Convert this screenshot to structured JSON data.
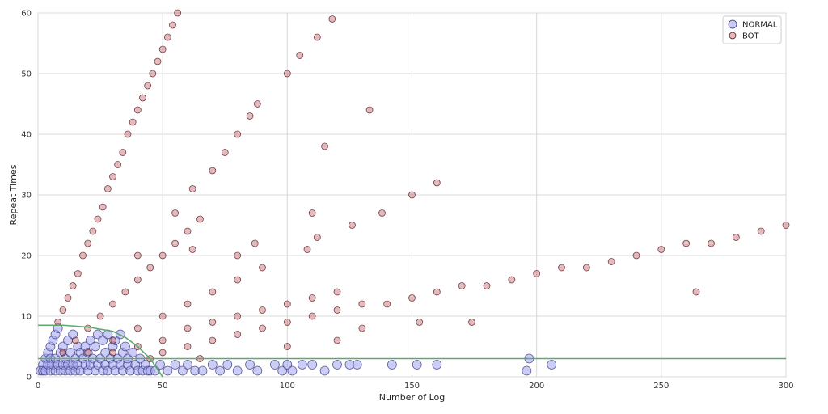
{
  "chart_data": {
    "type": "scatter",
    "xlabel": "Number of Log",
    "ylabel": "Repeat Times",
    "xlim": [
      0,
      300
    ],
    "ylim": [
      0,
      60
    ],
    "xticks": [
      0,
      50,
      100,
      150,
      200,
      250,
      300
    ],
    "yticks": [
      0,
      10,
      20,
      30,
      40,
      50,
      60
    ],
    "grid": true,
    "legend_position": "top-right",
    "series": [
      {
        "name": "NORMAL",
        "color": "#a0a4f0",
        "edge": "#3a3a80",
        "points": [
          [
            1,
            1
          ],
          [
            2,
            2
          ],
          [
            2,
            1
          ],
          [
            3,
            3
          ],
          [
            3,
            1
          ],
          [
            4,
            2
          ],
          [
            4,
            4
          ],
          [
            5,
            1
          ],
          [
            5,
            3
          ],
          [
            5,
            5
          ],
          [
            6,
            2
          ],
          [
            6,
            6
          ],
          [
            7,
            1
          ],
          [
            7,
            3
          ],
          [
            7,
            7
          ],
          [
            8,
            2
          ],
          [
            8,
            8
          ],
          [
            9,
            1
          ],
          [
            9,
            4
          ],
          [
            10,
            2
          ],
          [
            10,
            5
          ],
          [
            11,
            1
          ],
          [
            11,
            3
          ],
          [
            12,
            2
          ],
          [
            12,
            6
          ],
          [
            13,
            1
          ],
          [
            13,
            4
          ],
          [
            14,
            2
          ],
          [
            14,
            7
          ],
          [
            15,
            1
          ],
          [
            15,
            3
          ],
          [
            16,
            2
          ],
          [
            16,
            5
          ],
          [
            17,
            1
          ],
          [
            17,
            4
          ],
          [
            18,
            3
          ],
          [
            19,
            2
          ],
          [
            19,
            5
          ],
          [
            20,
            1
          ],
          [
            20,
            4
          ],
          [
            21,
            2
          ],
          [
            21,
            6
          ],
          [
            22,
            3
          ],
          [
            23,
            1
          ],
          [
            23,
            5
          ],
          [
            24,
            2
          ],
          [
            24,
            7
          ],
          [
            25,
            3
          ],
          [
            26,
            1
          ],
          [
            26,
            6
          ],
          [
            27,
            2
          ],
          [
            27,
            4
          ],
          [
            28,
            1
          ],
          [
            28,
            7
          ],
          [
            29,
            3
          ],
          [
            30,
            2
          ],
          [
            30,
            5
          ],
          [
            31,
            1
          ],
          [
            31,
            6
          ],
          [
            32,
            3
          ],
          [
            33,
            2
          ],
          [
            33,
            7
          ],
          [
            34,
            1
          ],
          [
            34,
            4
          ],
          [
            35,
            5
          ],
          [
            36,
            2
          ],
          [
            36,
            3
          ],
          [
            37,
            1
          ],
          [
            38,
            4
          ],
          [
            39,
            2
          ],
          [
            40,
            1
          ],
          [
            41,
            3
          ],
          [
            42,
            1
          ],
          [
            43,
            2
          ],
          [
            44,
            1
          ],
          [
            45,
            1
          ],
          [
            47,
            1
          ],
          [
            49,
            2
          ],
          [
            52,
            1
          ],
          [
            55,
            2
          ],
          [
            58,
            1
          ],
          [
            60,
            2
          ],
          [
            63,
            1
          ],
          [
            66,
            1
          ],
          [
            70,
            2
          ],
          [
            73,
            1
          ],
          [
            76,
            2
          ],
          [
            80,
            1
          ],
          [
            85,
            2
          ],
          [
            88,
            1
          ],
          [
            95,
            2
          ],
          [
            98,
            1
          ],
          [
            100,
            2
          ],
          [
            102,
            1
          ],
          [
            106,
            2
          ],
          [
            110,
            2
          ],
          [
            115,
            1
          ],
          [
            120,
            2
          ],
          [
            125,
            2
          ],
          [
            128,
            2
          ],
          [
            142,
            2
          ],
          [
            152,
            2
          ],
          [
            160,
            2
          ],
          [
            196,
            1
          ],
          [
            197,
            3
          ],
          [
            206,
            2
          ]
        ]
      },
      {
        "name": "BOT",
        "color": "#c0686e",
        "edge": "#5a1a1e",
        "points": [
          [
            8,
            9
          ],
          [
            10,
            11
          ],
          [
            12,
            13
          ],
          [
            14,
            15
          ],
          [
            16,
            17
          ],
          [
            18,
            20
          ],
          [
            20,
            22
          ],
          [
            22,
            24
          ],
          [
            24,
            26
          ],
          [
            26,
            28
          ],
          [
            28,
            31
          ],
          [
            30,
            33
          ],
          [
            32,
            35
          ],
          [
            34,
            37
          ],
          [
            36,
            40
          ],
          [
            38,
            42
          ],
          [
            40,
            44
          ],
          [
            42,
            46
          ],
          [
            44,
            48
          ],
          [
            46,
            50
          ],
          [
            48,
            52
          ],
          [
            50,
            54
          ],
          [
            52,
            56
          ],
          [
            54,
            58
          ],
          [
            56,
            60
          ],
          [
            10,
            4
          ],
          [
            15,
            6
          ],
          [
            20,
            8
          ],
          [
            25,
            10
          ],
          [
            30,
            12
          ],
          [
            35,
            14
          ],
          [
            40,
            16
          ],
          [
            45,
            18
          ],
          [
            50,
            20
          ],
          [
            55,
            22
          ],
          [
            60,
            24
          ],
          [
            65,
            26
          ],
          [
            20,
            4
          ],
          [
            30,
            6
          ],
          [
            40,
            8
          ],
          [
            50,
            10
          ],
          [
            60,
            12
          ],
          [
            70,
            14
          ],
          [
            80,
            16
          ],
          [
            90,
            18
          ],
          [
            30,
            4
          ],
          [
            40,
            5
          ],
          [
            50,
            6
          ],
          [
            60,
            8
          ],
          [
            70,
            9
          ],
          [
            80,
            10
          ],
          [
            90,
            11
          ],
          [
            100,
            12
          ],
          [
            110,
            13
          ],
          [
            120,
            14
          ],
          [
            50,
            4
          ],
          [
            60,
            5
          ],
          [
            70,
            6
          ],
          [
            80,
            7
          ],
          [
            90,
            8
          ],
          [
            100,
            9
          ],
          [
            110,
            10
          ],
          [
            120,
            11
          ],
          [
            130,
            12
          ],
          [
            140,
            12
          ],
          [
            150,
            13
          ],
          [
            160,
            14
          ],
          [
            170,
            15
          ],
          [
            180,
            15
          ],
          [
            190,
            16
          ],
          [
            200,
            17
          ],
          [
            210,
            18
          ],
          [
            220,
            18
          ],
          [
            230,
            19
          ],
          [
            240,
            20
          ],
          [
            250,
            21
          ],
          [
            260,
            22
          ],
          [
            270,
            22
          ],
          [
            280,
            23
          ],
          [
            290,
            24
          ],
          [
            300,
            25
          ],
          [
            40,
            20
          ],
          [
            55,
            27
          ],
          [
            62,
            31
          ],
          [
            75,
            37
          ],
          [
            85,
            43
          ],
          [
            100,
            50
          ],
          [
            105,
            53
          ],
          [
            112,
            56
          ],
          [
            118,
            59
          ],
          [
            70,
            34
          ],
          [
            80,
            40
          ],
          [
            88,
            45
          ],
          [
            115,
            38
          ],
          [
            133,
            44
          ],
          [
            150,
            30
          ],
          [
            160,
            32
          ],
          [
            110,
            27
          ],
          [
            126,
            25
          ],
          [
            138,
            27
          ],
          [
            62,
            21
          ],
          [
            80,
            20
          ],
          [
            87,
            22
          ],
          [
            108,
            21
          ],
          [
            112,
            23
          ],
          [
            264,
            14
          ],
          [
            130,
            8
          ],
          [
            153,
            9
          ],
          [
            174,
            9
          ],
          [
            120,
            6
          ],
          [
            100,
            5
          ],
          [
            65,
            3
          ],
          [
            45,
            3
          ]
        ]
      }
    ],
    "threshold_lines": {
      "color": "#5cab6a",
      "horizontal_level": 3,
      "curve": [
        [
          0,
          8.5
        ],
        [
          10,
          8.5
        ],
        [
          20,
          8.2
        ],
        [
          30,
          7.5
        ],
        [
          35,
          6.5
        ],
        [
          40,
          5
        ],
        [
          45,
          3
        ],
        [
          50,
          0
        ]
      ]
    }
  }
}
